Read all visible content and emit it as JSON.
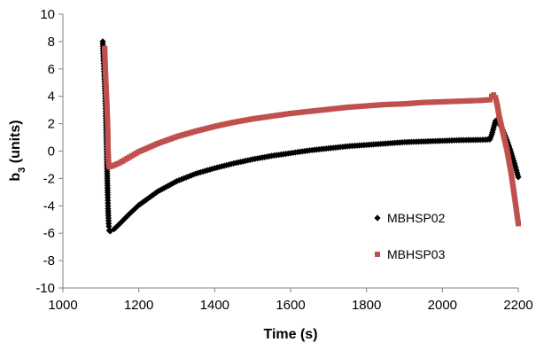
{
  "chart_data": {
    "type": "scatter",
    "title": "",
    "xlabel": "Time (s)",
    "ylabel_main": "b",
    "ylabel_sub": "3",
    "ylabel_rest": " (units)",
    "xlim": [
      1000,
      2200
    ],
    "ylim": [
      -10,
      10
    ],
    "xticks": [
      1000,
      1200,
      1400,
      1600,
      1800,
      2000,
      2200
    ],
    "yticks": [
      -10,
      -8,
      -6,
      -4,
      -2,
      0,
      2,
      4,
      6,
      8,
      10
    ],
    "grid": false,
    "legend_position": "bottom-right",
    "series": [
      {
        "name": "MBHSP02",
        "marker": "diamond",
        "color": "#000000",
        "points": [
          [
            1105,
            8.0
          ],
          [
            1107,
            6.6
          ],
          [
            1109,
            5.6
          ],
          [
            1111,
            4.4
          ],
          [
            1113,
            2.9
          ],
          [
            1114,
            1.7
          ],
          [
            1115,
            0.5
          ],
          [
            1116,
            -0.8
          ],
          [
            1117,
            -2.0
          ],
          [
            1118,
            -3.2
          ],
          [
            1119,
            -4.2
          ],
          [
            1120,
            -4.9
          ],
          [
            1121,
            -5.5
          ],
          [
            1122,
            -5.8
          ],
          [
            1125,
            -5.85
          ],
          [
            1135,
            -5.7
          ],
          [
            1150,
            -5.3
          ],
          [
            1175,
            -4.6
          ],
          [
            1200,
            -3.95
          ],
          [
            1250,
            -2.95
          ],
          [
            1300,
            -2.2
          ],
          [
            1350,
            -1.65
          ],
          [
            1400,
            -1.25
          ],
          [
            1450,
            -0.9
          ],
          [
            1500,
            -0.6
          ],
          [
            1550,
            -0.35
          ],
          [
            1600,
            -0.15
          ],
          [
            1650,
            0.05
          ],
          [
            1700,
            0.2
          ],
          [
            1750,
            0.35
          ],
          [
            1800,
            0.45
          ],
          [
            1850,
            0.55
          ],
          [
            1900,
            0.65
          ],
          [
            1950,
            0.7
          ],
          [
            2000,
            0.75
          ],
          [
            2050,
            0.8
          ],
          [
            2100,
            0.82
          ],
          [
            2125,
            0.85
          ],
          [
            2130,
            1.2
          ],
          [
            2135,
            1.7
          ],
          [
            2140,
            2.2
          ],
          [
            2145,
            2.3
          ],
          [
            2150,
            2.0
          ],
          [
            2160,
            1.5
          ],
          [
            2170,
            0.8
          ],
          [
            2180,
            0.0
          ],
          [
            2190,
            -0.9
          ],
          [
            2200,
            -1.9
          ]
        ]
      },
      {
        "name": "MBHSP03",
        "marker": "square",
        "color": "#c0504d",
        "points": [
          [
            1110,
            7.5
          ],
          [
            1112,
            5.9
          ],
          [
            1114,
            4.6
          ],
          [
            1116,
            3.4
          ],
          [
            1118,
            1.9
          ],
          [
            1119,
            0.2
          ],
          [
            1120,
            -0.6
          ],
          [
            1121,
            -1.0
          ],
          [
            1122,
            -1.15
          ],
          [
            1130,
            -1.1
          ],
          [
            1150,
            -0.85
          ],
          [
            1175,
            -0.45
          ],
          [
            1200,
            -0.05
          ],
          [
            1250,
            0.55
          ],
          [
            1300,
            1.05
          ],
          [
            1350,
            1.45
          ],
          [
            1400,
            1.8
          ],
          [
            1450,
            2.1
          ],
          [
            1500,
            2.35
          ],
          [
            1550,
            2.55
          ],
          [
            1600,
            2.75
          ],
          [
            1650,
            2.9
          ],
          [
            1700,
            3.05
          ],
          [
            1750,
            3.2
          ],
          [
            1800,
            3.3
          ],
          [
            1850,
            3.4
          ],
          [
            1900,
            3.45
          ],
          [
            1950,
            3.55
          ],
          [
            2000,
            3.6
          ],
          [
            2050,
            3.65
          ],
          [
            2100,
            3.7
          ],
          [
            2125,
            3.75
          ],
          [
            2130,
            4.0
          ],
          [
            2135,
            4.1
          ],
          [
            2140,
            3.9
          ],
          [
            2145,
            3.3
          ],
          [
            2150,
            2.5
          ],
          [
            2160,
            1.3
          ],
          [
            2170,
            0.1
          ],
          [
            2180,
            -1.4
          ],
          [
            2190,
            -3.3
          ],
          [
            2200,
            -5.3
          ]
        ]
      }
    ]
  }
}
